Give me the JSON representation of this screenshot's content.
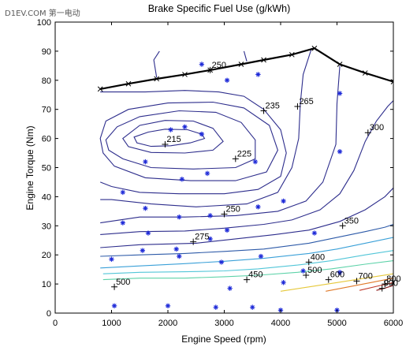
{
  "watermark": "D1EV.COM 第一电动",
  "chart_data": {
    "type": "contour",
    "title": "Brake Specific Fuel Use (g/kWh)",
    "xlabel": "Engine Speed (rpm)",
    "ylabel": "Engine Torque (Nm)",
    "xlim": [
      0,
      6000
    ],
    "ylim": [
      0,
      100
    ],
    "xticks": [
      0,
      1000,
      2000,
      3000,
      4000,
      5000,
      6000
    ],
    "yticks": [
      0,
      10,
      20,
      30,
      40,
      50,
      60,
      70,
      80,
      90,
      100
    ],
    "grid": false,
    "max_torque_line": {
      "color": "#000000",
      "points": [
        [
          800,
          77
        ],
        [
          1300,
          78.8
        ],
        [
          1800,
          80.5
        ],
        [
          2300,
          82
        ],
        [
          2750,
          83.5
        ],
        [
          3300,
          85.5
        ],
        [
          3700,
          87
        ],
        [
          4200,
          88.8
        ],
        [
          4600,
          91
        ],
        [
          5050,
          85.5
        ],
        [
          5500,
          82.5
        ],
        [
          6000,
          79.5
        ]
      ]
    },
    "contours": [
      {
        "level": "215",
        "color": "#2d2d8c",
        "closed": true,
        "points": [
          [
            1400,
            60.5
          ],
          [
            1650,
            62.2
          ],
          [
            1950,
            63.2
          ],
          [
            2350,
            63
          ],
          [
            2600,
            61.5
          ],
          [
            2650,
            60
          ],
          [
            2400,
            58.5
          ],
          [
            2050,
            57.5
          ],
          [
            1700,
            57.3
          ],
          [
            1450,
            58.5
          ]
        ]
      },
      {
        "level": "",
        "color": "#2d2d8c",
        "closed": true,
        "points": [
          [
            1200,
            60
          ],
          [
            1500,
            64.5
          ],
          [
            1950,
            66.2
          ],
          [
            2450,
            66
          ],
          [
            2800,
            63.5
          ],
          [
            2980,
            59
          ],
          [
            2800,
            56
          ],
          [
            2300,
            55
          ],
          [
            1700,
            55.2
          ],
          [
            1300,
            57.2
          ]
        ]
      },
      {
        "level": "225",
        "color": "#2d2d8c",
        "closed": true,
        "points": [
          [
            900,
            59.5
          ],
          [
            1100,
            64
          ],
          [
            1500,
            67.5
          ],
          [
            2200,
            69.5
          ],
          [
            2850,
            69
          ],
          [
            3300,
            65.5
          ],
          [
            3550,
            59.5
          ],
          [
            3550,
            53
          ],
          [
            3200,
            50
          ],
          [
            2450,
            49.5
          ],
          [
            1700,
            50
          ],
          [
            1200,
            53
          ],
          [
            950,
            56
          ]
        ]
      },
      {
        "level": "",
        "color": "#2d2d8c",
        "closed": true,
        "points": [
          [
            800,
            60
          ],
          [
            900,
            66
          ],
          [
            1300,
            70
          ],
          [
            2000,
            72.2
          ],
          [
            2800,
            72.5
          ],
          [
            3350,
            70.5
          ],
          [
            3800,
            64.5
          ],
          [
            3950,
            56
          ],
          [
            3750,
            48.5
          ],
          [
            3200,
            45.5
          ],
          [
            2400,
            45.5
          ],
          [
            1600,
            46.5
          ],
          [
            1050,
            50.5
          ],
          [
            850,
            55
          ]
        ]
      },
      {
        "level": "235",
        "color": "#2d2d8c",
        "points": [
          [
            800,
            76
          ],
          [
            1600,
            76
          ],
          [
            2300,
            76.5
          ],
          [
            2900,
            76
          ],
          [
            3350,
            74.5
          ],
          [
            3700,
            70
          ],
          [
            4000,
            63
          ],
          [
            4100,
            55
          ],
          [
            4000,
            47
          ],
          [
            3600,
            42.5
          ],
          [
            3000,
            41
          ],
          [
            2200,
            41
          ],
          [
            1500,
            41.5
          ],
          [
            1000,
            43.5
          ],
          [
            800,
            45
          ]
        ]
      },
      {
        "level": "250",
        "color": "#2d2d8c",
        "points": [
          [
            1800,
            81
          ],
          [
            1750,
            87
          ],
          [
            1850,
            90
          ]
        ]
      },
      {
        "level": "",
        "color": "#2d2d8c",
        "points": [
          [
            3350,
            90
          ],
          [
            3400,
            86.5
          ]
        ]
      },
      {
        "level": "265",
        "color": "#2d2d8c",
        "points": [
          [
            4550,
            91
          ],
          [
            4400,
            82
          ],
          [
            4350,
            72
          ],
          [
            4320,
            60
          ],
          [
            4200,
            50
          ],
          [
            3950,
            41.5
          ],
          [
            3400,
            37.5
          ],
          [
            2500,
            36.5
          ],
          [
            1700,
            37.5
          ],
          [
            1000,
            39
          ],
          [
            800,
            39
          ]
        ]
      },
      {
        "level": "",
        "color": "#2d2d8c",
        "points": [
          [
            800,
            31
          ],
          [
            1500,
            33
          ],
          [
            2300,
            33
          ],
          [
            3200,
            33.5
          ],
          [
            3950,
            35
          ],
          [
            4450,
            38.5
          ],
          [
            4750,
            45
          ],
          [
            4980,
            58
          ],
          [
            5000,
            72
          ],
          [
            5050,
            85
          ]
        ]
      },
      {
        "level": "300",
        "color": "#2d2d8c",
        "points": [
          [
            800,
            27
          ],
          [
            1500,
            28
          ],
          [
            2300,
            28.2
          ],
          [
            3000,
            29.2
          ],
          [
            3700,
            30.5
          ],
          [
            4200,
            32
          ],
          [
            4700,
            35.5
          ],
          [
            5050,
            41
          ],
          [
            5300,
            49
          ],
          [
            5500,
            59
          ],
          [
            5700,
            66
          ],
          [
            5900,
            71
          ],
          [
            6000,
            73
          ]
        ]
      },
      {
        "level": "",
        "color": "#2d2d8c",
        "points": [
          [
            800,
            22.5
          ],
          [
            1500,
            23.5
          ],
          [
            2500,
            24
          ],
          [
            3200,
            25.5
          ],
          [
            3900,
            27
          ],
          [
            4500,
            28.5
          ],
          [
            5050,
            31.5
          ],
          [
            5500,
            35.5
          ],
          [
            5850,
            40
          ],
          [
            6000,
            43
          ]
        ]
      },
      {
        "level": "350",
        "color": "#2d5aa8",
        "points": [
          [
            800,
            19.5
          ],
          [
            1500,
            20
          ],
          [
            2300,
            20.5
          ],
          [
            3000,
            21.2
          ],
          [
            3700,
            22
          ],
          [
            4500,
            24
          ],
          [
            5000,
            26
          ],
          [
            5500,
            28
          ],
          [
            5850,
            29.5
          ],
          [
            6000,
            30.5
          ]
        ]
      },
      {
        "level": "400",
        "color": "#3aa0d8",
        "points": [
          [
            800,
            15.5
          ],
          [
            1500,
            16.2
          ],
          [
            2300,
            17
          ],
          [
            3000,
            17.8
          ],
          [
            3700,
            18.8
          ],
          [
            4500,
            20.5
          ],
          [
            5000,
            22
          ],
          [
            5500,
            24
          ],
          [
            6000,
            26
          ]
        ]
      },
      {
        "level": "450",
        "color": "#52c6d8",
        "points": [
          [
            850,
            13.5
          ],
          [
            1500,
            14
          ],
          [
            2300,
            14.2
          ],
          [
            3000,
            14.5
          ],
          [
            3600,
            15.2
          ],
          [
            4300,
            16.5
          ],
          [
            4900,
            18
          ],
          [
            5500,
            20
          ],
          [
            6000,
            21.5
          ]
        ]
      },
      {
        "level": "500",
        "color": "#5cd2a8",
        "points": [
          [
            850,
            11.5
          ],
          [
            1500,
            12
          ],
          [
            2300,
            12
          ],
          [
            3000,
            12.5
          ],
          [
            3600,
            13
          ],
          [
            4300,
            14
          ],
          [
            4900,
            15.2
          ],
          [
            5500,
            16.8
          ],
          [
            6000,
            18
          ]
        ]
      },
      {
        "level": "600",
        "color": "#e6c83a",
        "points": [
          [
            4000,
            7.5
          ],
          [
            4500,
            9
          ],
          [
            5000,
            10.5
          ],
          [
            5500,
            12
          ],
          [
            6000,
            13.5
          ]
        ]
      },
      {
        "level": "700",
        "color": "#e07a2a",
        "points": [
          [
            4800,
            7.5
          ],
          [
            5200,
            9
          ],
          [
            5600,
            10.5
          ],
          [
            6000,
            12
          ]
        ]
      },
      {
        "level": "800",
        "color": "#c0392b",
        "points": [
          [
            5400,
            7.8
          ],
          [
            5700,
            9.2
          ],
          [
            6000,
            10.5
          ]
        ]
      },
      {
        "level": "900",
        "color": "#8a1a1a",
        "points": [
          [
            5700,
            7.8
          ],
          [
            5850,
            8.6
          ],
          [
            6000,
            9.5
          ]
        ]
      }
    ],
    "level_labels": [
      {
        "text": "250",
        "at": [
          2750,
          83.5
        ]
      },
      {
        "text": "215",
        "at": [
          1950,
          58
        ]
      },
      {
        "text": "235",
        "at": [
          3700,
          69.5
        ]
      },
      {
        "text": "265",
        "at": [
          4300,
          71
        ]
      },
      {
        "text": "300",
        "at": [
          5550,
          62
        ]
      },
      {
        "text": "225",
        "at": [
          3200,
          53
        ]
      },
      {
        "text": "250",
        "at": [
          3000,
          34
        ]
      },
      {
        "text": "275",
        "at": [
          2450,
          24.5
        ]
      },
      {
        "text": "350",
        "at": [
          5100,
          30
        ]
      },
      {
        "text": "400",
        "at": [
          4500,
          17.5
        ]
      },
      {
        "text": "500",
        "at": [
          1050,
          9
        ]
      },
      {
        "text": "450",
        "at": [
          3400,
          11.5
        ]
      },
      {
        "text": "500",
        "at": [
          4450,
          13
        ]
      },
      {
        "text": "600",
        "at": [
          4850,
          11.5
        ]
      },
      {
        "text": "700",
        "at": [
          5350,
          11
        ]
      },
      {
        "text": "800",
        "at": [
          5850,
          10
        ]
      },
      {
        "text": "900",
        "at": [
          5800,
          8.5
        ]
      }
    ],
    "measurement_points": {
      "color": "#1f2bd8",
      "points": [
        [
          1050,
          2.5
        ],
        [
          1000,
          18.5
        ],
        [
          1200,
          31
        ],
        [
          1200,
          41.5
        ],
        [
          1550,
          21.5
        ],
        [
          1600,
          36
        ],
        [
          1650,
          27.5
        ],
        [
          1600,
          52
        ],
        [
          2000,
          2.5
        ],
        [
          2050,
          63
        ],
        [
          2150,
          22
        ],
        [
          2200,
          19.5
        ],
        [
          2200,
          33
        ],
        [
          2250,
          46
        ],
        [
          2300,
          64
        ],
        [
          2600,
          61.5
        ],
        [
          2600,
          85.5
        ],
        [
          2700,
          48
        ],
        [
          2750,
          33.5
        ],
        [
          2750,
          25.5
        ],
        [
          2850,
          2
        ],
        [
          2950,
          17.5
        ],
        [
          3050,
          80
        ],
        [
          3050,
          28.5
        ],
        [
          3100,
          8.5
        ],
        [
          3500,
          2
        ],
        [
          3550,
          52
        ],
        [
          3600,
          82
        ],
        [
          3600,
          36.5
        ],
        [
          3650,
          19.5
        ],
        [
          4000,
          1
        ],
        [
          4050,
          10.5
        ],
        [
          4050,
          38.5
        ],
        [
          4400,
          14.5
        ],
        [
          4600,
          27.5
        ],
        [
          5000,
          1
        ],
        [
          5050,
          14
        ],
        [
          5050,
          75.5
        ],
        [
          5050,
          55.5
        ]
      ]
    }
  }
}
